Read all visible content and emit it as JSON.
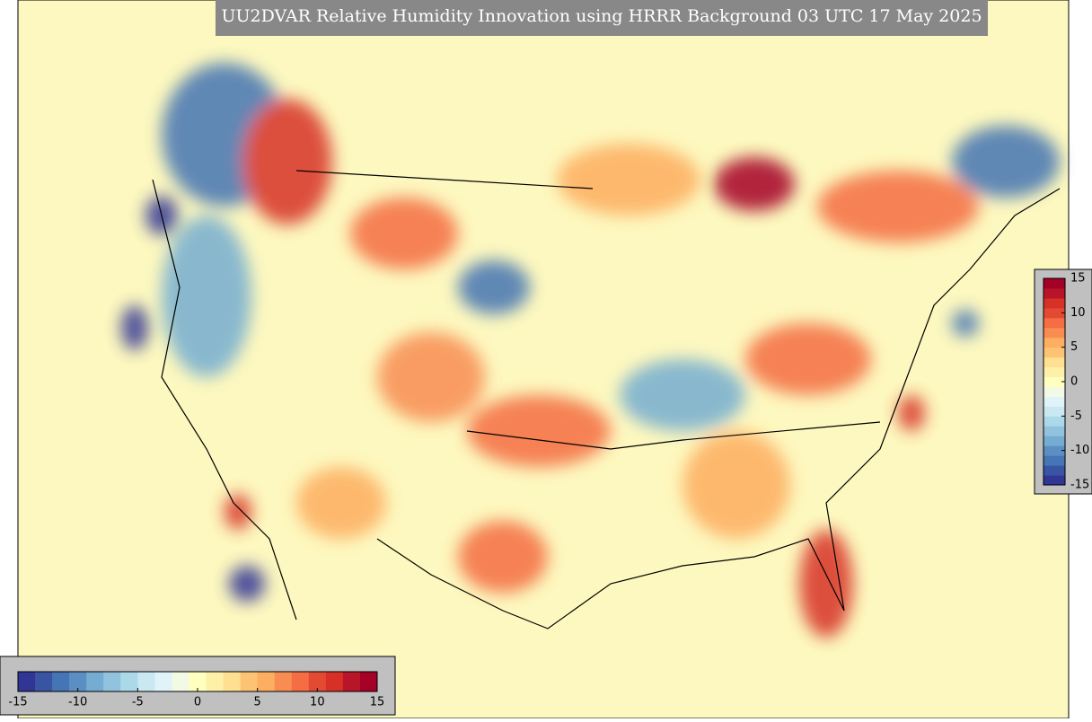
{
  "title": "UU2DVAR Relative Humidity Innovation using HRRR Background 03 UTC 17 May 2025",
  "colormap": [
    "#313695",
    "#3a54a4",
    "#4575b4",
    "#5b8fc4",
    "#74add1",
    "#91c3de",
    "#abd9e9",
    "#c9e8f2",
    "#e0f3f8",
    "#f2fae6",
    "#ffffbf",
    "#fff0a8",
    "#fee090",
    "#fdc374",
    "#fdae61",
    "#f88d52",
    "#f46d43",
    "#e34a33",
    "#d73027",
    "#b8152a",
    "#a50026"
  ],
  "colorbar_horizontal": {
    "lim": [
      -15,
      15
    ],
    "ticks": [
      -15,
      -10,
      -5,
      0,
      5,
      10,
      15
    ]
  },
  "colorbar_vertical": {
    "lim": [
      -15,
      15
    ],
    "ticks": [
      15,
      10,
      5,
      0,
      -5,
      -10,
      -15
    ]
  }
}
